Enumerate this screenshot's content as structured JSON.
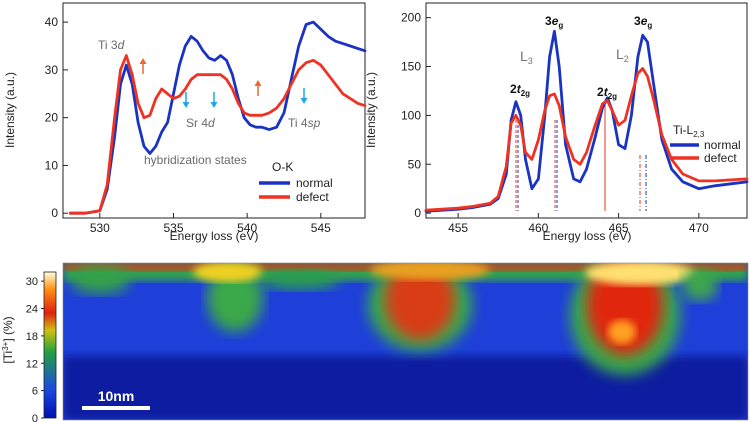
{
  "chart_data": [
    {
      "type": "line",
      "panel": "O-K edge",
      "xlabel": "Energy loss (eV)",
      "ylabel": "Intensity (a.u.)",
      "xlim": [
        527.5,
        548.0
      ],
      "ylim": [
        -1,
        44
      ],
      "xticks": [
        530,
        535,
        540,
        545
      ],
      "yticks": [
        0,
        10,
        20,
        30,
        40
      ],
      "grid": false,
      "legend_title": "O-K",
      "legend_position": "lower-right",
      "series": [
        {
          "name": "normal",
          "color": "#1a33c2",
          "x": [
            528,
            529,
            530,
            530.5,
            531,
            531.4,
            531.8,
            532.2,
            532.6,
            533,
            533.4,
            533.8,
            534.2,
            534.6,
            535,
            535.4,
            535.8,
            536.2,
            536.6,
            537,
            537.4,
            537.8,
            538.2,
            538.6,
            539,
            539.4,
            539.8,
            540.2,
            540.6,
            541,
            541.5,
            542,
            542.5,
            543,
            543.5,
            544,
            544.5,
            545,
            545.5,
            546,
            546.5,
            547,
            547.5,
            548
          ],
          "y": [
            0,
            0,
            0.5,
            5,
            16,
            27,
            31,
            27,
            19,
            14,
            12.5,
            14,
            17,
            19,
            25,
            31,
            35,
            37,
            36,
            34,
            32.5,
            32,
            33,
            32,
            29,
            24,
            20,
            18.5,
            18,
            18,
            17.5,
            18,
            21,
            28,
            35,
            39.5,
            40,
            38.5,
            37,
            36,
            35.5,
            35,
            34.5,
            34
          ]
        },
        {
          "name": "defect",
          "color": "#ee3322",
          "x": [
            528,
            529,
            530,
            530.5,
            531,
            531.4,
            531.8,
            532.2,
            532.6,
            533,
            533.4,
            533.8,
            534.2,
            534.6,
            535,
            535.4,
            535.8,
            536.2,
            536.6,
            537,
            537.4,
            537.8,
            538.2,
            538.6,
            539,
            539.4,
            539.8,
            540.2,
            540.6,
            541,
            541.5,
            542,
            542.5,
            543,
            543.5,
            544,
            544.5,
            545,
            545.5,
            546,
            546.5,
            547,
            547.5,
            548
          ],
          "y": [
            0,
            0,
            0.5,
            6,
            20,
            30,
            33,
            29,
            23,
            20,
            20.5,
            24,
            26,
            25,
            24,
            24.5,
            26,
            28,
            29,
            29,
            29,
            29,
            29,
            28,
            26,
            23,
            21,
            20.5,
            20.5,
            20.5,
            21,
            22,
            24,
            27,
            30,
            31.5,
            32,
            31,
            29,
            27,
            25,
            24,
            23,
            22.5
          ]
        }
      ],
      "annotations": [
        "Ti 3d",
        "Sr 4d",
        "Ti 4sp",
        "hybridization states"
      ]
    },
    {
      "type": "line",
      "panel": "Ti-L2,3 edge",
      "xlabel": "Energy loss (eV)",
      "ylabel": "Intensity (a.u.)",
      "xlim": [
        453,
        473
      ],
      "ylim": [
        -5,
        215
      ],
      "xticks": [
        455,
        460,
        465,
        470
      ],
      "yticks": [
        0,
        50,
        100,
        150,
        200
      ],
      "grid": false,
      "legend_title": "Ti-L2,3",
      "legend_position": "right",
      "series": [
        {
          "name": "normal",
          "color": "#1a33c2",
          "x": [
            453,
            454,
            455,
            456,
            457,
            457.5,
            458,
            458.3,
            458.6,
            458.9,
            459.2,
            459.6,
            460,
            460.4,
            460.7,
            461,
            461.3,
            461.7,
            462.2,
            462.6,
            463,
            463.5,
            464,
            464.3,
            464.6,
            465,
            465.4,
            465.8,
            466.2,
            466.5,
            466.8,
            467.2,
            467.7,
            468.3,
            469,
            470,
            471,
            472,
            473
          ],
          "y": [
            2,
            3,
            4,
            6,
            9,
            15,
            40,
            95,
            114,
            100,
            55,
            25,
            35,
            100,
            160,
            186,
            150,
            70,
            35,
            32,
            45,
            75,
            108,
            118,
            105,
            70,
            66,
            100,
            160,
            182,
            175,
            130,
            75,
            45,
            32,
            25,
            28,
            30,
            32
          ]
        },
        {
          "name": "defect",
          "color": "#ee3322",
          "x": [
            453,
            454,
            455,
            456,
            457,
            457.5,
            458,
            458.3,
            458.6,
            458.9,
            459.2,
            459.6,
            460,
            460.4,
            460.7,
            461,
            461.3,
            461.7,
            462.2,
            462.6,
            463,
            463.5,
            464,
            464.3,
            464.6,
            465,
            465.4,
            465.8,
            466.2,
            466.5,
            466.8,
            467.2,
            467.7,
            468.3,
            469,
            470,
            471,
            472,
            473
          ],
          "y": [
            3,
            4,
            5,
            7,
            10,
            17,
            48,
            92,
            100,
            90,
            62,
            55,
            75,
            105,
            120,
            122,
            110,
            78,
            55,
            50,
            62,
            88,
            112,
            115,
            105,
            90,
            95,
            120,
            143,
            148,
            140,
            115,
            80,
            55,
            40,
            33,
            33,
            34,
            35
          ]
        }
      ],
      "annotations": [
        "2t2g",
        "3eg",
        "2t2g",
        "3eg",
        "L3",
        "L2"
      ]
    },
    {
      "type": "heatmap",
      "panel": "Ti3+ concentration map",
      "colorbar_label": "[Ti3+] (%)",
      "colorbar_ticks": [
        0,
        6,
        12,
        18,
        24,
        30
      ],
      "colorbar_range": [
        0,
        32
      ],
      "scale_bar_label": "10nm",
      "description_values": {
        "bottom_band": 2,
        "upper_background": 6,
        "hotspots": [
          {
            "x_frac": 0.23,
            "depth_frac": 0.55,
            "value": 16
          },
          {
            "x_frac": 0.5,
            "depth_frac": 0.65,
            "value": 22
          },
          {
            "x_frac": 0.82,
            "depth_frac": 0.75,
            "value": 27
          }
        ],
        "top_edge": 24
      }
    }
  ],
  "labels": {
    "panel_a_ylabel": "Intensity (a.u.)",
    "panel_a_xlabel": "Energy loss (eV)",
    "panel_b_ylabel": "Intensity (a.u.)",
    "panel_b_xlabel": "Energy loss (eV)",
    "ann_ti3d": "Ti 3d",
    "ann_sr4d": "Sr 4d",
    "ann_ti4sp": "Ti 4sp",
    "ann_hybrid": "hybridization states",
    "legend_a_title": "O-K",
    "legend_normal": "normal",
    "legend_defect": "defect",
    "legend_b_title": "Ti-L2,3",
    "ann_L3": "L3",
    "ann_L2": "L2",
    "ann_2t2g": "2t2g",
    "ann_3eg": "3eg",
    "cbar_label": "[Ti3+] (%)",
    "scale_bar": "10nm"
  },
  "colors": {
    "normal": "#1a33c2",
    "defect": "#ee3322",
    "axis": "#222222",
    "annotation_gray": "#6b6b6b",
    "arrow_orange": "#ee6633",
    "arrow_cyan": "#1ea7e8"
  }
}
